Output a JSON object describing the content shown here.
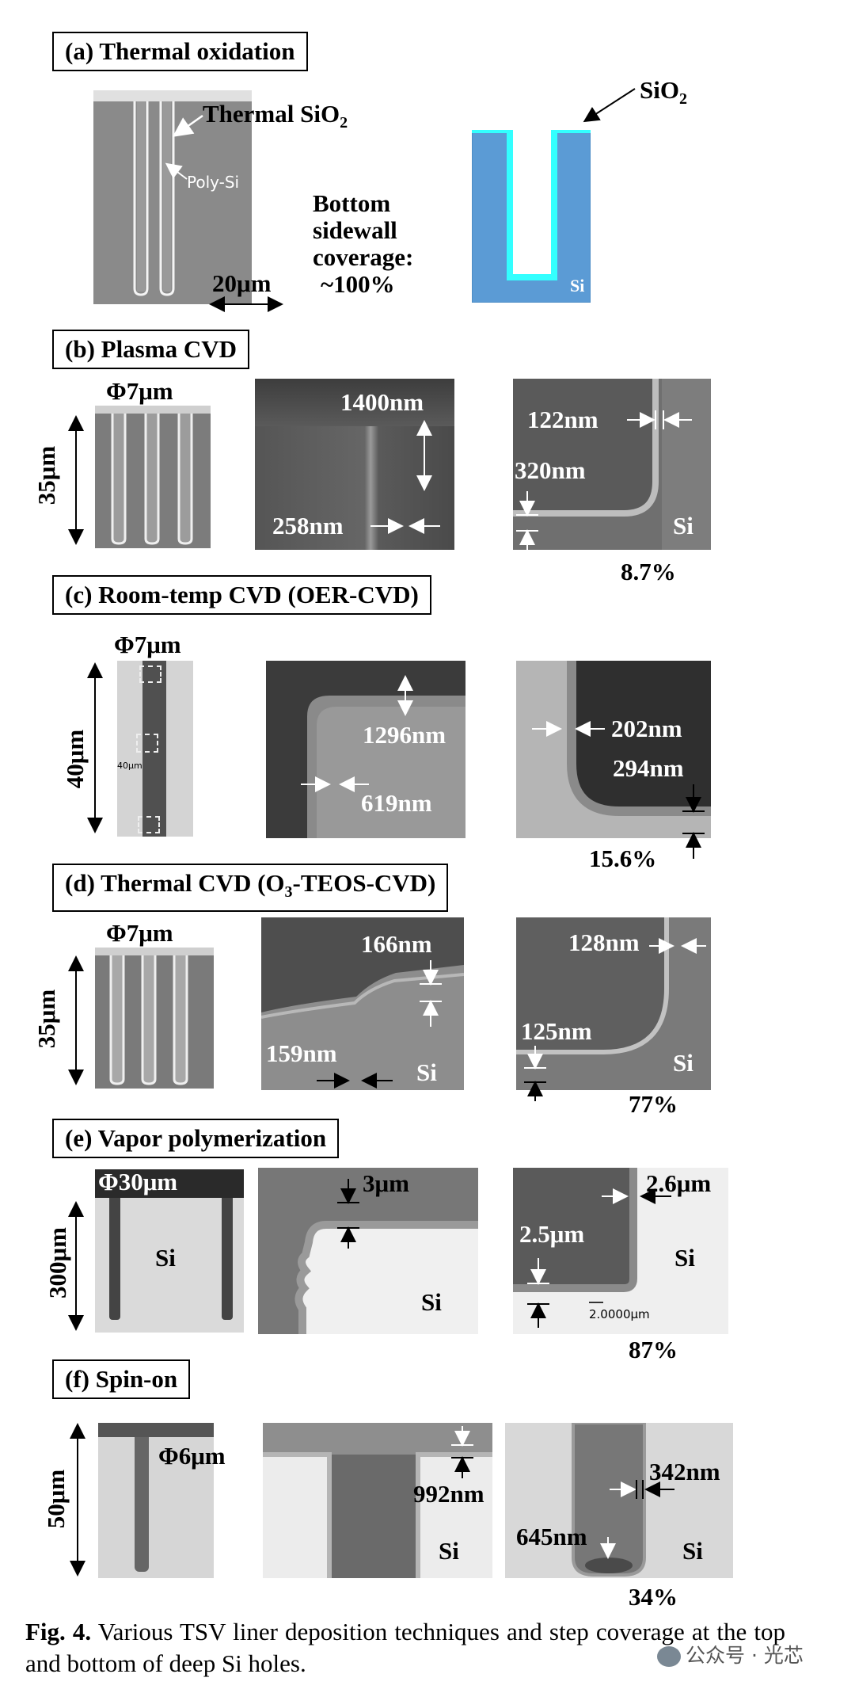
{
  "sections": {
    "a": {
      "title": "(a) Thermal oxidation",
      "label_thermal_sio2_main": "Thermal SiO",
      "label_thermal_sio2_sub": "2",
      "label_polysi": "Poly-Si",
      "scale": "20μm",
      "coverage_line1": "Bottom",
      "coverage_line2": "sidewall",
      "coverage_line3": "coverage:",
      "coverage_line4": "~100%",
      "schematic_sio2_main": "SiO",
      "schematic_sio2_sub": "2",
      "schematic_si": "Si",
      "colors": {
        "si": "#5b9bd5",
        "sio2": "#33ffff"
      }
    },
    "b": {
      "title": "(b) Plasma CVD",
      "diameter": "Φ7μm",
      "depth": "35μm",
      "top_thick": "1400nm",
      "top_side": "258nm",
      "bottom_side": "122nm",
      "bottom_thick": "320nm",
      "si": "Si",
      "coverage": "8.7%"
    },
    "c": {
      "title": "(c) Room-temp CVD (OER-CVD)",
      "diameter": "Φ7μm",
      "depth": "40μm",
      "inner_depth": "40μm",
      "top_thick": "1296nm",
      "top_side": "619nm",
      "bottom_side": "202nm",
      "bottom_thick": "294nm",
      "coverage": "15.6%"
    },
    "d": {
      "title_main": "(d) Thermal CVD (O",
      "title_sub": "3",
      "title_end": "-TEOS-CVD)",
      "diameter": "Φ7μm",
      "depth": "35μm",
      "top_thick": "166nm",
      "top_side": "159nm",
      "bottom_side": "128nm",
      "bottom_thick": "125nm",
      "si_mid": "Si",
      "si_right": "Si",
      "coverage": "77%"
    },
    "e": {
      "title": "(e) Vapor polymerization",
      "diameter": "Φ30μm",
      "depth": "300μm",
      "si_left": "Si",
      "top_thick": "3μm",
      "si_mid": "Si",
      "bottom_side": "2.6μm",
      "bottom_thick": "2.5μm",
      "si_right": "Si",
      "scalebar": "2.0000μm",
      "coverage": "87%"
    },
    "f": {
      "title": "(f) Spin-on",
      "diameter": "Φ6μm",
      "depth": "50μm",
      "top_thick": "992nm",
      "si_mid": "Si",
      "bottom_side": "342nm",
      "bottom_thick": "645nm",
      "si_right": "Si",
      "coverage": "34%"
    }
  },
  "caption": {
    "label": "Fig. 4.",
    "text": " Various TSV liner deposition techniques and step coverage at the top and bottom of deep Si holes."
  },
  "watermark": "公众号 · 光芯"
}
